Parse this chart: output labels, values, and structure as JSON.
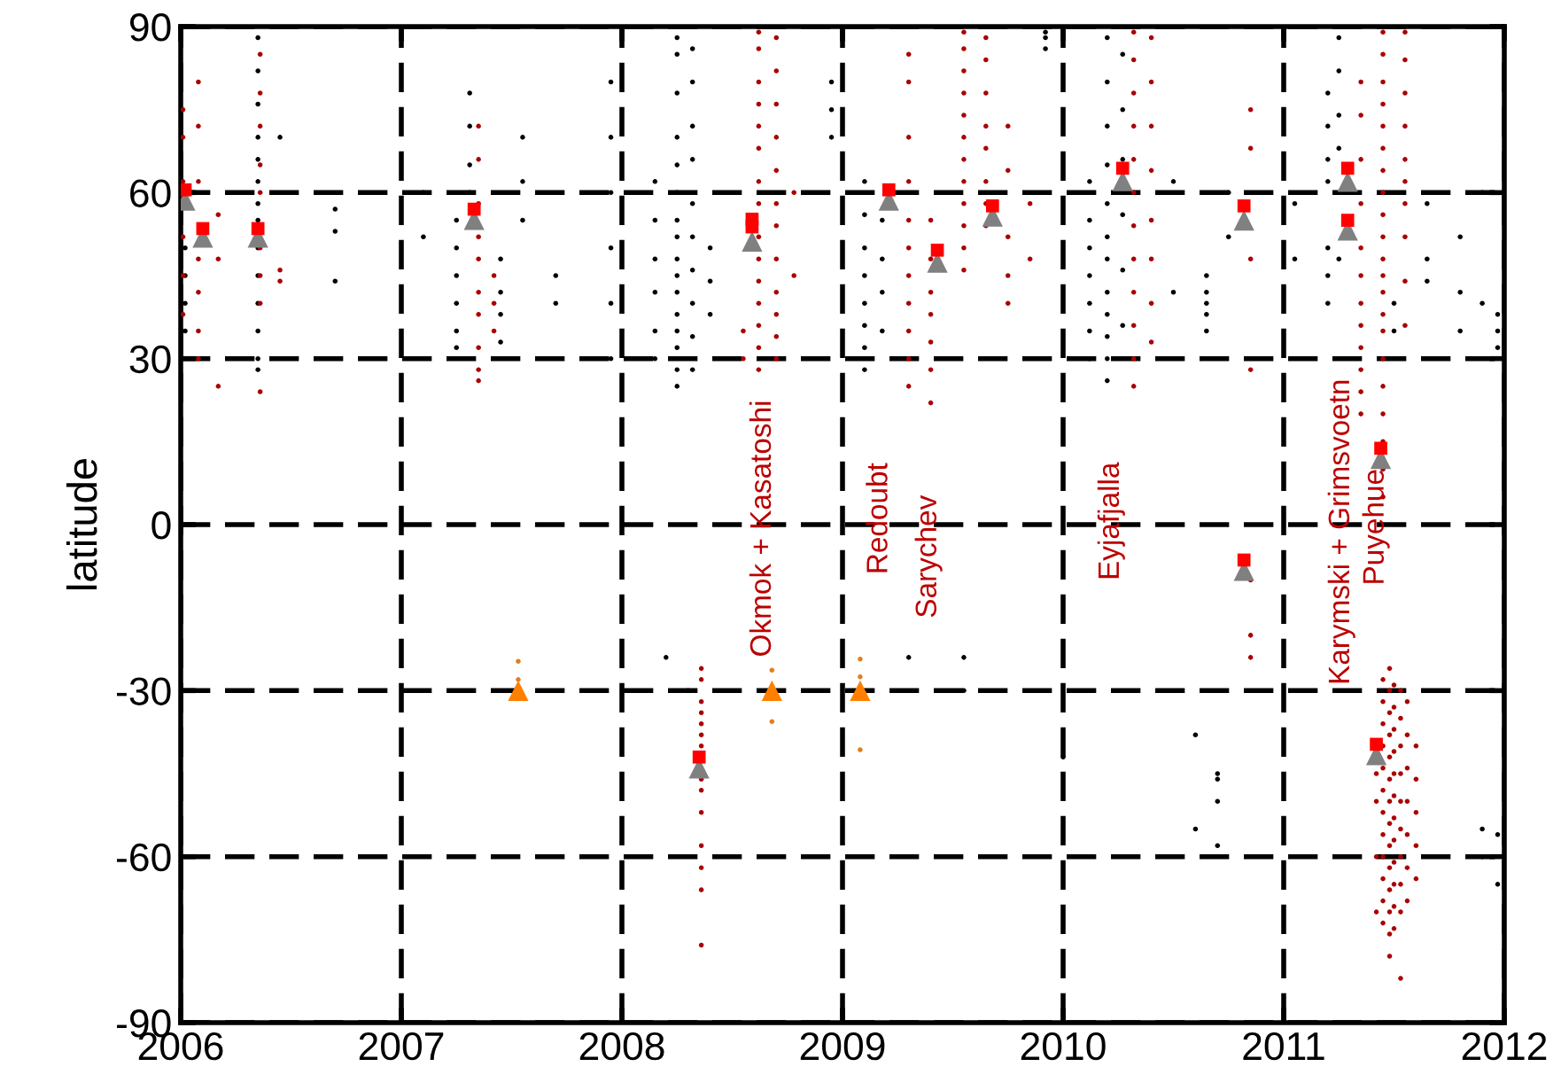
{
  "chart_data": {
    "type": "scatter",
    "ylabel": "latitude",
    "xlim": [
      2006,
      2012
    ],
    "xticks": [
      2006,
      2007,
      2008,
      2009,
      2010,
      2011,
      2012
    ],
    "ylim": [
      -90,
      90
    ],
    "yticks": [
      -90,
      -60,
      -30,
      0,
      30,
      60,
      90
    ],
    "grid": true,
    "line_style": "dashed",
    "series": [
      {
        "marker": "circle",
        "color": "#000000",
        "x": [
          2006.35,
          2006.35,
          2006.35,
          2006.35,
          2006.35,
          2006.35,
          2006.35,
          2006.35,
          2006.35,
          2006.35,
          2006.35,
          2006.35,
          2006.35,
          2006.35,
          2006.7,
          2006.7,
          2006.7,
          2006.45,
          2006.02,
          2006.02,
          2006.02,
          2006.02,
          2007.1,
          2007.1,
          2007.25,
          2007.25,
          2007.25,
          2007.25,
          2007.25,
          2007.25,
          2007.31,
          2007.31,
          2007.31,
          2007.31,
          2007.45,
          2007.45,
          2007.45,
          2007.45,
          2007.55,
          2007.55,
          2007.55,
          2007.7,
          2007.7,
          2007.95,
          2007.95,
          2007.95,
          2007.95,
          2007.95,
          2007.95,
          2008.15,
          2008.15,
          2008.15,
          2008.15,
          2008.15,
          2008.15,
          2008.25,
          2008.25,
          2008.25,
          2008.25,
          2008.25,
          2008.25,
          2008.25,
          2008.25,
          2008.25,
          2008.25,
          2008.25,
          2008.25,
          2008.25,
          2008.25,
          2008.25,
          2008.25,
          2008.32,
          2008.32,
          2008.32,
          2008.32,
          2008.32,
          2008.32,
          2008.32,
          2008.32,
          2008.32,
          2008.32,
          2008.4,
          2008.4,
          2008.4,
          2008.2,
          2008.3,
          2008.95,
          2008.95,
          2008.95,
          2009.1,
          2009.1,
          2009.1,
          2009.1,
          2009.1,
          2009.1,
          2009.1,
          2009.1,
          2009.18,
          2009.18,
          2009.18,
          2009.18,
          2009.3,
          2009.55,
          2009.55,
          2009.92,
          2009.92,
          2009.92,
          2010.0,
          2010.12,
          2010.12,
          2010.12,
          2010.12,
          2010.12,
          2010.12,
          2010.12,
          2010.2,
          2010.2,
          2010.2,
          2010.2,
          2010.2,
          2010.2,
          2010.2,
          2010.2,
          2010.2,
          2010.2,
          2010.2,
          2010.2,
          2010.27,
          2010.27,
          2010.27,
          2010.27,
          2010.27,
          2010.27,
          2010.5,
          2010.5,
          2010.65,
          2010.65,
          2010.65,
          2010.65,
          2010.65,
          2010.6,
          2010.6,
          2010.7,
          2010.7,
          2010.7,
          2010.7,
          2010.75,
          2010.75,
          2011.05,
          2011.05,
          2011.2,
          2011.2,
          2011.2,
          2011.2,
          2011.2,
          2011.2,
          2011.2,
          2011.25,
          2011.25,
          2011.25,
          2011.25,
          2011.25,
          2011.5,
          2011.5,
          2011.65,
          2011.65,
          2011.65,
          2011.8,
          2011.8,
          2011.8,
          2011.9,
          2011.9,
          2011.9,
          2011.9,
          2011.97,
          2011.97,
          2011.97,
          2011.97,
          2011.97
        ],
        "values": [
          88,
          82,
          76,
          70,
          66,
          62,
          58,
          55,
          50,
          45,
          40,
          35,
          30,
          28,
          57,
          53,
          44,
          70,
          50,
          45,
          40,
          35,
          60,
          52,
          55,
          50,
          45,
          40,
          35,
          32,
          78,
          72,
          65,
          60,
          48,
          42,
          38,
          33,
          70,
          62,
          55,
          40,
          45,
          30,
          40,
          50,
          60,
          70,
          80,
          62,
          55,
          48,
          42,
          35,
          30,
          88,
          85,
          78,
          70,
          65,
          60,
          55,
          52,
          48,
          45,
          42,
          38,
          35,
          32,
          28,
          25,
          86,
          80,
          72,
          66,
          58,
          52,
          46,
          40,
          34,
          28,
          50,
          44,
          38,
          -24,
          -30,
          75,
          70,
          80,
          62,
          56,
          50,
          45,
          40,
          36,
          32,
          28,
          55,
          48,
          42,
          35,
          -24,
          -24,
          -30,
          88,
          89,
          86,
          -42,
          30,
          35,
          40,
          45,
          50,
          55,
          62,
          88,
          80,
          72,
          65,
          58,
          52,
          48,
          42,
          38,
          34,
          30,
          26,
          85,
          75,
          66,
          56,
          46,
          36,
          62,
          42,
          45,
          40,
          38,
          35,
          42,
          -38,
          -55,
          -45,
          -50,
          -58,
          -46,
          60,
          52,
          58,
          48,
          78,
          72,
          66,
          62,
          50,
          45,
          40,
          88,
          82,
          74,
          68,
          48,
          35,
          40,
          48,
          44,
          58,
          52,
          42,
          35,
          60,
          40,
          -60,
          -55,
          35,
          32,
          38,
          -56,
          -65
        ]
      },
      {
        "marker": "circle",
        "color": "#aa0000",
        "x": [
          2006.01,
          2006.01,
          2006.01,
          2006.01,
          2006.01,
          2006.01,
          2006.08,
          2006.08,
          2006.08,
          2006.08,
          2006.08,
          2006.08,
          2006.08,
          2006.17,
          2006.17,
          2006.17,
          2006.36,
          2006.36,
          2006.36,
          2006.36,
          2006.36,
          2006.36,
          2006.36,
          2006.36,
          2006.36,
          2006.45,
          2006.45,
          2007.35,
          2007.35,
          2007.35,
          2007.35,
          2007.35,
          2007.35,
          2007.35,
          2007.35,
          2007.35,
          2007.35,
          2007.42,
          2007.42,
          2007.42,
          2008.62,
          2008.62,
          2008.62,
          2008.62,
          2008.62,
          2008.62,
          2008.62,
          2008.62,
          2008.62,
          2008.62,
          2008.62,
          2008.62,
          2008.62,
          2008.62,
          2008.62,
          2008.7,
          2008.7,
          2008.7,
          2008.7,
          2008.7,
          2008.7,
          2008.7,
          2008.7,
          2008.7,
          2008.7,
          2008.7,
          2008.7,
          2008.55,
          2008.55,
          2008.78,
          2008.78,
          2009.3,
          2009.3,
          2009.3,
          2009.3,
          2009.3,
          2009.3,
          2009.3,
          2009.3,
          2009.3,
          2009.3,
          2009.3,
          2009.4,
          2009.4,
          2009.4,
          2009.4,
          2009.4,
          2009.4,
          2009.4,
          2009.55,
          2009.55,
          2009.55,
          2009.55,
          2009.55,
          2009.55,
          2009.55,
          2009.55,
          2009.55,
          2009.55,
          2009.55,
          2009.55,
          2009.65,
          2009.65,
          2009.65,
          2009.65,
          2009.65,
          2009.65,
          2009.65,
          2009.65,
          2009.75,
          2009.75,
          2009.75,
          2009.75,
          2009.75,
          2009.85,
          2009.85,
          2010.32,
          2010.32,
          2010.32,
          2010.32,
          2010.32,
          2010.32,
          2010.32,
          2010.32,
          2010.32,
          2010.32,
          2010.32,
          2010.32,
          2010.4,
          2010.4,
          2010.4,
          2010.4,
          2010.4,
          2010.4,
          2010.4,
          2010.4,
          2010.85,
          2010.85,
          2010.85,
          2010.85,
          2010.85,
          2010.85,
          2010.85,
          2011.35,
          2011.35,
          2011.35,
          2011.35,
          2011.35,
          2011.35,
          2011.35,
          2011.35,
          2011.35,
          2011.35,
          2011.35,
          2011.35,
          2011.45,
          2011.45,
          2011.45,
          2011.45,
          2011.45,
          2011.45,
          2011.45,
          2011.45,
          2011.45,
          2011.45,
          2011.45,
          2011.45,
          2011.45,
          2011.45,
          2011.45,
          2011.45,
          2011.45,
          2011.45,
          2011.45,
          2011.45,
          2011.45,
          2011.55,
          2011.55,
          2011.55,
          2011.55,
          2011.55,
          2011.55,
          2011.55,
          2011.55,
          2011.55,
          2011.55
        ],
        "values": [
          75,
          70,
          62,
          52,
          45,
          38,
          80,
          72,
          62,
          48,
          42,
          35,
          30,
          56,
          48,
          25,
          85,
          78,
          72,
          65,
          60,
          50,
          45,
          40,
          24,
          46,
          44,
          72,
          66,
          58,
          52,
          48,
          42,
          38,
          32,
          28,
          26,
          45,
          40,
          35,
          89,
          86,
          80,
          76,
          72,
          68,
          62,
          58,
          52,
          48,
          44,
          40,
          36,
          32,
          28,
          88,
          82,
          76,
          70,
          64,
          58,
          54,
          48,
          42,
          38,
          34,
          30,
          35,
          30,
          60,
          45,
          85,
          80,
          70,
          62,
          55,
          50,
          45,
          40,
          35,
          30,
          25,
          55,
          48,
          42,
          38,
          33,
          28,
          22,
          89,
          86,
          82,
          78,
          74,
          70,
          66,
          62,
          58,
          54,
          50,
          46,
          88,
          84,
          78,
          72,
          68,
          62,
          58,
          54,
          72,
          64,
          52,
          45,
          40,
          58,
          48,
          89,
          84,
          78,
          72,
          66,
          60,
          54,
          48,
          42,
          36,
          30,
          25,
          88,
          80,
          72,
          64,
          55,
          48,
          40,
          33,
          75,
          68,
          48,
          28,
          -10,
          -20,
          -24,
          80,
          74,
          66,
          58,
          50,
          45,
          40,
          36,
          32,
          28,
          24,
          20,
          89,
          85,
          80,
          76,
          72,
          68,
          64,
          60,
          56,
          52,
          48,
          45,
          42,
          38,
          35,
          30,
          25,
          20,
          15,
          10,
          5,
          89,
          84,
          78,
          72,
          66,
          62,
          58,
          52,
          44,
          36
        ]
      },
      {
        "marker": "circle",
        "color": "#aa0000",
        "x": [
          2008.36,
          2008.36,
          2008.36,
          2008.36,
          2008.36,
          2008.36,
          2008.36,
          2008.36,
          2008.36,
          2008.36,
          2008.36,
          2008.36,
          2008.36,
          2008.36,
          2011.45,
          2011.45,
          2011.45,
          2011.45,
          2011.45,
          2011.45,
          2011.45,
          2011.45,
          2011.45,
          2011.45,
          2011.45,
          2011.45,
          2011.48,
          2011.48,
          2011.48,
          2011.48,
          2011.48,
          2011.48,
          2011.48,
          2011.48,
          2011.48,
          2011.48,
          2011.48,
          2011.48,
          2011.48,
          2011.48,
          2011.5,
          2011.5,
          2011.5,
          2011.5,
          2011.5,
          2011.5,
          2011.5,
          2011.5,
          2011.5,
          2011.5,
          2011.5,
          2011.5,
          2011.53,
          2011.53,
          2011.53,
          2011.53,
          2011.53,
          2011.53,
          2011.53,
          2011.53,
          2011.53,
          2011.53,
          2011.56,
          2011.56,
          2011.56,
          2011.56,
          2011.56,
          2011.56,
          2011.56,
          2011.6,
          2011.6,
          2011.6,
          2011.6,
          2011.6,
          2011.42,
          2011.42,
          2011.42,
          2011.42
        ],
        "values": [
          -26,
          -28,
          -32,
          -34,
          -36,
          -38,
          -40,
          -46,
          -48,
          -52,
          -58,
          -62,
          -66,
          -76,
          -28,
          -32,
          -36,
          -40,
          -44,
          -48,
          -52,
          -56,
          -60,
          -64,
          -68,
          -72,
          -26,
          -30,
          -34,
          -38,
          -42,
          -46,
          -50,
          -54,
          -58,
          -62,
          -66,
          -70,
          -74,
          -78,
          -29,
          -33,
          -37,
          -41,
          -45,
          -49,
          -53,
          -57,
          -61,
          -65,
          -69,
          -73,
          -30,
          -35,
          -40,
          -45,
          -50,
          -55,
          -60,
          -65,
          -70,
          -82,
          -32,
          -38,
          -44,
          -50,
          -56,
          -62,
          -68,
          -40,
          -46,
          -52,
          -58,
          -64,
          -45,
          -50,
          -60,
          -70
        ]
      },
      {
        "marker": "circle",
        "color": "#e08020",
        "x": [
          2007.53,
          2007.53,
          2008.68,
          2008.68,
          2009.08,
          2009.08,
          2009.08
        ],
        "values": [
          -24.7,
          -28,
          -26.3,
          -35.6,
          -24.3,
          -27.5,
          -40.7
        ]
      },
      {
        "marker": "triangle",
        "color": "#808080",
        "x": [
          2006.02,
          2006.1,
          2006.35,
          2007.33,
          2008.59,
          2009.21,
          2009.43,
          2009.68,
          2010.27,
          2010.82,
          2011.29,
          2011.29,
          2011.44,
          2010.82,
          2008.35,
          2011.42
        ],
        "values": [
          58.6,
          51.9,
          51.9,
          55.1,
          51.2,
          58.6,
          47.4,
          55.7,
          62.1,
          55,
          62,
          53.2,
          11.9,
          -8.3,
          -44,
          -41.6
        ]
      },
      {
        "marker": "square",
        "color": "#ff0000",
        "x": [
          2006.02,
          2006.1,
          2006.35,
          2007.33,
          2008.59,
          2008.59,
          2009.21,
          2009.43,
          2009.68,
          2010.27,
          2010.82,
          2011.29,
          2011.29,
          2011.44,
          2010.82,
          2008.35,
          2011.42
        ],
        "values": [
          60.5,
          53.5,
          53.5,
          57,
          53.8,
          55.2,
          60.5,
          49.6,
          57.6,
          64.4,
          57.6,
          64.4,
          55,
          13.8,
          -6.4,
          -42,
          -39.7
        ]
      },
      {
        "marker": "triangle",
        "color": "#ff8000",
        "x": [
          2007.53,
          2008.68,
          2009.08
        ],
        "values": [
          -30,
          -30,
          -30
        ]
      }
    ],
    "annotations": [
      "Okmok + Kasatoshi",
      "Redoubt",
      "Sarychev",
      "Eyjafjalla",
      "Karymski + Grimsvoetn",
      "Puyehue"
    ]
  }
}
